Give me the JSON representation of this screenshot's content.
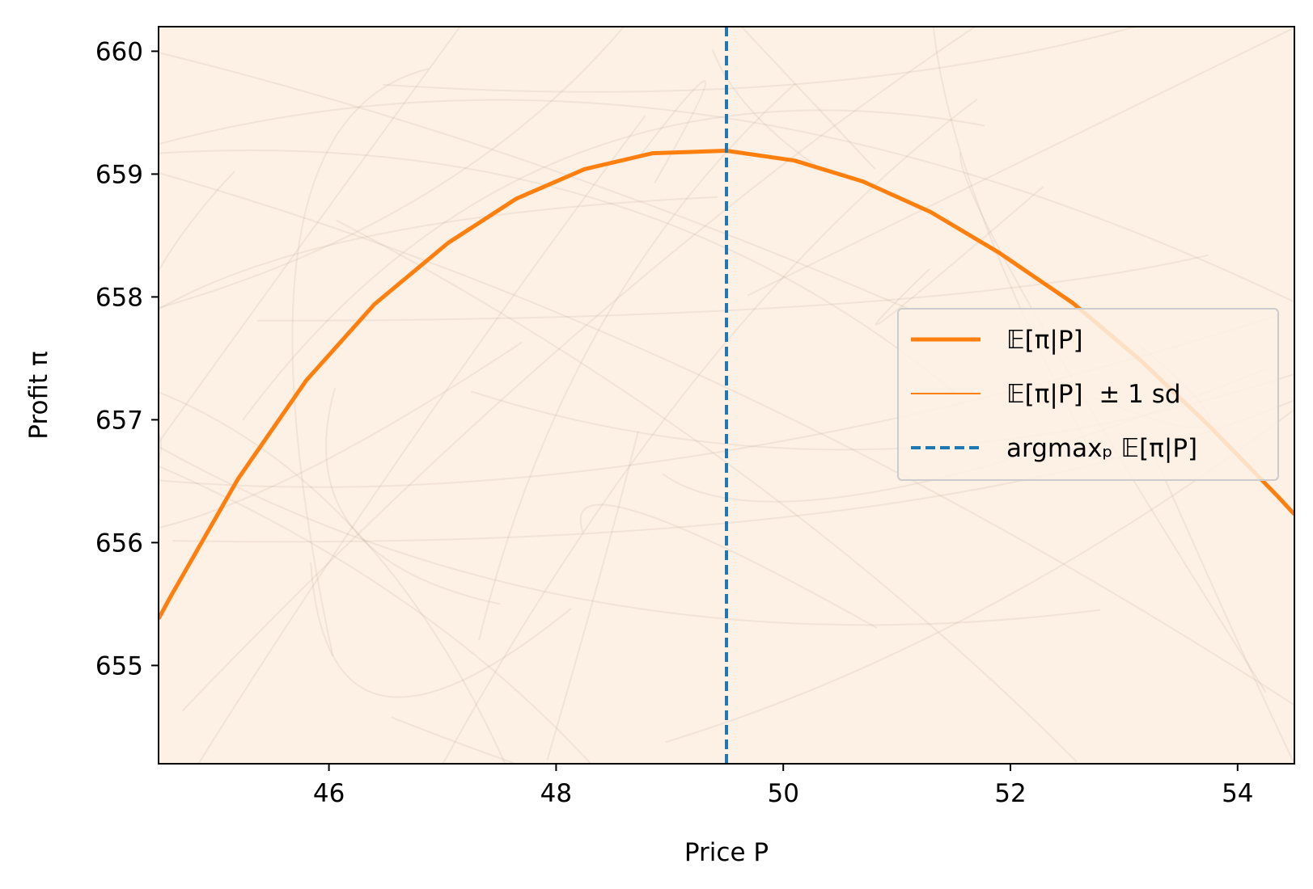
{
  "chart_data": {
    "type": "line",
    "title": "",
    "xlabel": "Price P",
    "ylabel": "Profit π",
    "xlim": [
      44.5,
      54.5
    ],
    "ylim": [
      654.2,
      660.2
    ],
    "xticks": [
      {
        "value": 46,
        "label": "46"
      },
      {
        "value": 48,
        "label": "48"
      },
      {
        "value": 50,
        "label": "50"
      },
      {
        "value": 52,
        "label": "52"
      },
      {
        "value": 54,
        "label": "54"
      }
    ],
    "yticks": [
      {
        "value": 655,
        "label": "655"
      },
      {
        "value": 656,
        "label": "656"
      },
      {
        "value": 657,
        "label": "657"
      },
      {
        "value": 658,
        "label": "658"
      },
      {
        "value": 659,
        "label": "659"
      },
      {
        "value": 660,
        "label": "660"
      }
    ],
    "grid": false,
    "legend_position": "center-right",
    "background_color": "#fdf0e4",
    "series": [
      {
        "name": "𝔼[π|P]",
        "color": "#ff7f0e",
        "style": "solid-thick",
        "x": [
          44.5,
          44.6,
          45.2,
          45.8,
          46.4,
          47.05,
          47.65,
          48.25,
          48.85,
          49.5,
          50.1,
          50.7,
          51.3,
          51.9,
          52.55,
          53.15,
          53.75,
          54.35,
          54.5
        ],
        "y": [
          655.38,
          655.55,
          656.52,
          657.32,
          657.94,
          658.44,
          658.8,
          659.04,
          659.17,
          659.19,
          659.11,
          658.94,
          658.69,
          658.36,
          657.95,
          657.48,
          656.95,
          656.38,
          656.23
        ]
      },
      {
        "name": "𝔼[π|P]  ± 1 sd",
        "color": "#ff7f0e",
        "style": "solid-thin",
        "x": [],
        "y": []
      },
      {
        "name": "argmaxₚ 𝔼[π|P]",
        "color": "#1f77b4",
        "style": "dashed-vertical",
        "x_value": 49.5
      }
    ],
    "background_draws": {
      "count": 42,
      "color": "#7f6a55",
      "opacity": 0.09
    }
  }
}
